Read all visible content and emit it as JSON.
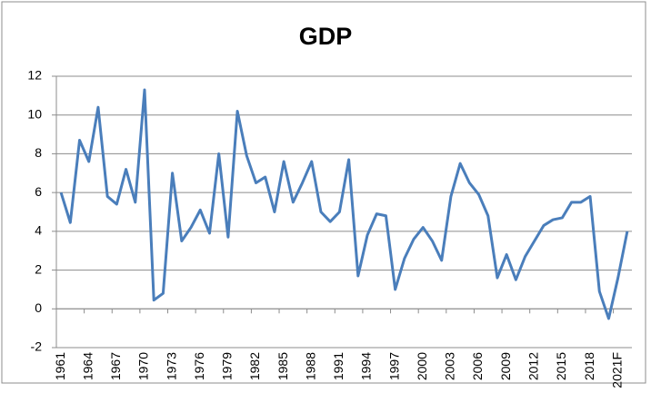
{
  "chart_data": {
    "type": "line",
    "title": "GDP",
    "categories": [
      "1961",
      null,
      null,
      "1964",
      null,
      null,
      "1967",
      null,
      null,
      "1970",
      null,
      null,
      "1973",
      null,
      null,
      "1976",
      null,
      null,
      "1979",
      null,
      null,
      "1982",
      null,
      null,
      "1985",
      null,
      null,
      "1988",
      null,
      null,
      "1991",
      null,
      null,
      "1994",
      null,
      null,
      "1997",
      null,
      null,
      "2000",
      null,
      null,
      "2003",
      null,
      null,
      "2006",
      null,
      null,
      "2009",
      null,
      null,
      "2012",
      null,
      null,
      "2015",
      null,
      null,
      "2018",
      null,
      null,
      "2021F",
      null
    ],
    "values": [
      6.0,
      4.45,
      8.7,
      7.6,
      10.4,
      5.8,
      5.4,
      7.2,
      5.5,
      11.3,
      0.45,
      0.8,
      7.0,
      3.5,
      4.2,
      5.1,
      3.9,
      8.0,
      3.7,
      10.2,
      7.9,
      6.5,
      6.8,
      5.0,
      7.6,
      5.5,
      6.5,
      7.6,
      5.0,
      4.5,
      5.0,
      7.7,
      1.7,
      3.8,
      4.9,
      4.8,
      1.0,
      2.6,
      3.6,
      4.2,
      3.5,
      2.5,
      5.8,
      7.5,
      6.5,
      5.9,
      4.8,
      1.6,
      2.8,
      1.5,
      2.7,
      3.5,
      4.3,
      4.6,
      4.7,
      5.5,
      5.5,
      5.8,
      0.9,
      -0.5,
      1.6,
      4.0
    ],
    "color": "#4a7ebb",
    "ylim": [
      -2,
      12
    ],
    "yticks": [
      -2,
      0,
      2,
      4,
      6,
      8,
      10,
      12
    ],
    "grid": true
  }
}
